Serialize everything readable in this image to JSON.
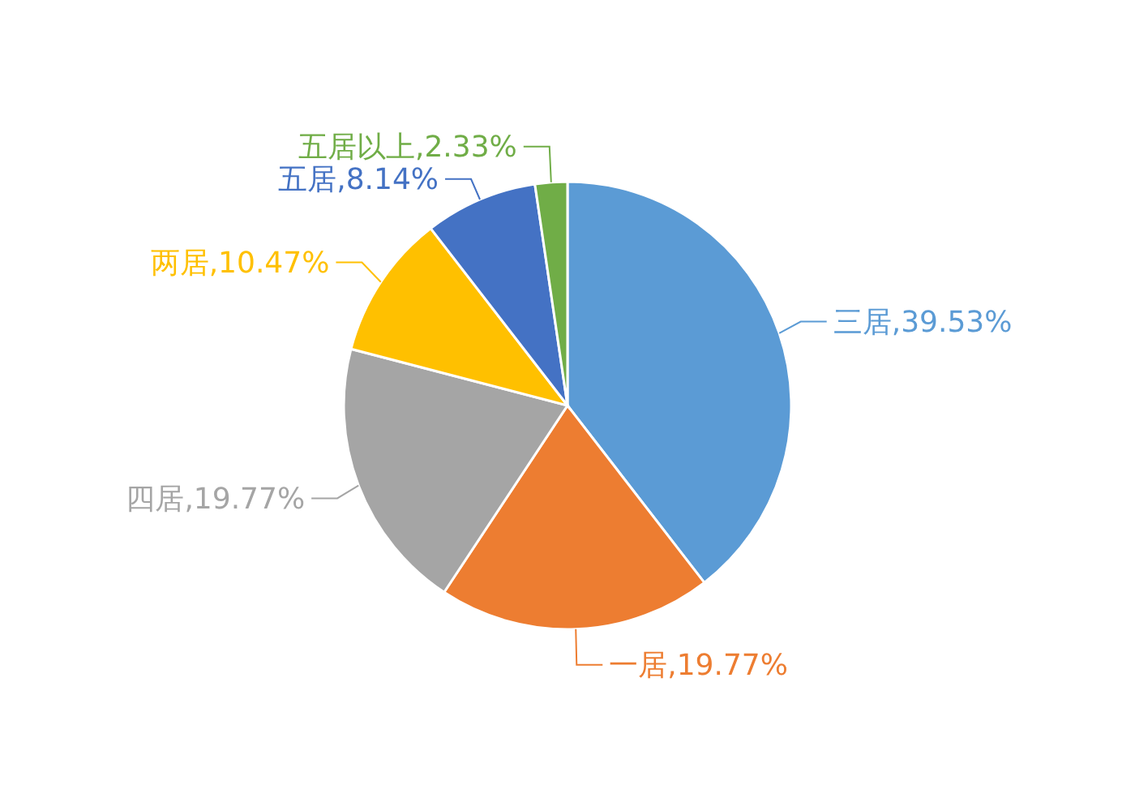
{
  "chart_data": {
    "type": "pie",
    "categories": [
      "三居",
      "一居",
      "四居",
      "两居",
      "五居",
      "五居以上"
    ],
    "values": [
      39.53,
      19.77,
      19.77,
      10.47,
      8.14,
      2.33
    ],
    "value_labels": [
      "39.53%",
      "19.77%",
      "19.77%",
      "10.47%",
      "8.14%",
      "2.33%"
    ],
    "colors": [
      "#5b9bd5",
      "#ed7d31",
      "#a5a5a5",
      "#ffc000",
      "#4472c4",
      "#70ad47"
    ],
    "legend": false
  }
}
